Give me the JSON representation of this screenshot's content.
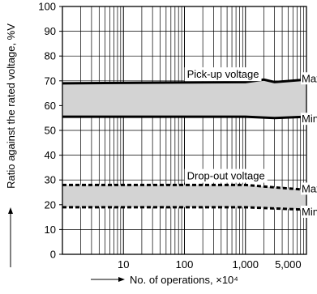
{
  "chart_data": {
    "type": "area",
    "x_scale": "log",
    "xlim": [
      1,
      10000
    ],
    "ylim": [
      0,
      100
    ],
    "grid": true,
    "xlabel": "No. of operations, ×10⁴",
    "ylabel": "Ratio against the rated voltage, %V",
    "x_ticks": [
      10,
      100,
      1000,
      5000
    ],
    "x_tick_labels": [
      "10",
      "100",
      "1,000",
      "5,000"
    ],
    "y_ticks": [
      0,
      10,
      20,
      30,
      40,
      50,
      60,
      70,
      80,
      90,
      100
    ],
    "y_tick_labels": [
      "0",
      "10",
      "20",
      "30",
      "40",
      "50",
      "60",
      "70",
      "80",
      "90",
      "100"
    ],
    "bands": [
      {
        "name": "Pick-up voltage",
        "line_style": "solid",
        "max": {
          "label": "Max.",
          "x": [
            1,
            1000,
            2000,
            3000,
            10000
          ],
          "y": [
            69,
            69.5,
            70.5,
            69.5,
            70.5
          ]
        },
        "min": {
          "label": "Min.",
          "x": [
            1,
            1000,
            3000,
            10000
          ],
          "y": [
            55.5,
            55.5,
            55,
            55.5
          ]
        }
      },
      {
        "name": "Drop-out voltage",
        "line_style": "dashed",
        "max": {
          "label": "Max.",
          "x": [
            1,
            1000,
            3000,
            10000
          ],
          "y": [
            28,
            28,
            27,
            26
          ]
        },
        "min": {
          "label": "Min.",
          "x": [
            1,
            1000,
            3000,
            10000
          ],
          "y": [
            19,
            19,
            18.5,
            18
          ]
        }
      }
    ],
    "band_fill": "#d3d3d3",
    "line_color": "#000000"
  }
}
